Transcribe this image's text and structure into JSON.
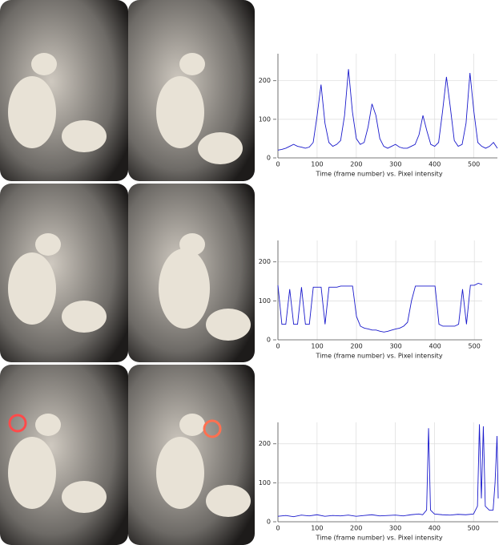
{
  "chart_data": [
    {
      "type": "line",
      "xlabel": "Time (frame number) vs. Pixel intensity",
      "color": "#1a1acc",
      "grid": true,
      "x": [
        0,
        10,
        20,
        30,
        40,
        50,
        60,
        70,
        80,
        90,
        100,
        110,
        120,
        130,
        140,
        150,
        160,
        170,
        180,
        190,
        200,
        210,
        220,
        230,
        240,
        250,
        260,
        270,
        280,
        290,
        300,
        310,
        320,
        330,
        340,
        350,
        360,
        370,
        380,
        390,
        400,
        410,
        420,
        430,
        440,
        450,
        460,
        470,
        480,
        490,
        500,
        510,
        520,
        530,
        540,
        550,
        560
      ],
      "values": [
        20,
        22,
        25,
        30,
        35,
        30,
        28,
        25,
        28,
        40,
        110,
        190,
        90,
        40,
        30,
        35,
        45,
        110,
        230,
        120,
        50,
        35,
        40,
        80,
        140,
        110,
        50,
        30,
        25,
        30,
        35,
        28,
        25,
        25,
        30,
        35,
        60,
        110,
        70,
        35,
        30,
        40,
        120,
        210,
        130,
        45,
        30,
        35,
        90,
        220,
        120,
        40,
        30,
        25,
        30,
        40,
        25
      ],
      "xlim": [
        0,
        560
      ],
      "ylim": [
        0,
        270
      ],
      "xticks": [
        0,
        100,
        200,
        300,
        400,
        500
      ],
      "yticks": [
        0,
        100,
        200
      ]
    },
    {
      "type": "line",
      "xlabel": "Time (frame number) vs. Pixel intensity",
      "color": "#1a1acc",
      "grid": true,
      "x": [
        0,
        10,
        20,
        30,
        40,
        50,
        60,
        70,
        80,
        90,
        100,
        110,
        120,
        130,
        140,
        150,
        160,
        170,
        180,
        190,
        200,
        210,
        220,
        230,
        240,
        250,
        260,
        270,
        280,
        290,
        300,
        310,
        320,
        330,
        340,
        350,
        360,
        370,
        380,
        390,
        400,
        410,
        420,
        430,
        440,
        450,
        460,
        470,
        480,
        490,
        500,
        510,
        520
      ],
      "values": [
        140,
        40,
        40,
        130,
        40,
        40,
        135,
        40,
        40,
        135,
        135,
        135,
        40,
        135,
        135,
        135,
        138,
        138,
        138,
        138,
        60,
        35,
        30,
        28,
        25,
        25,
        22,
        20,
        22,
        25,
        28,
        30,
        35,
        45,
        100,
        138,
        138,
        138,
        138,
        138,
        138,
        40,
        35,
        35,
        35,
        35,
        40,
        130,
        40,
        140,
        140,
        145,
        142
      ],
      "xlim": [
        0,
        520
      ],
      "ylim": [
        0,
        255
      ],
      "xticks": [
        0,
        100,
        200,
        300,
        400,
        500
      ],
      "yticks": [
        0,
        100,
        200
      ]
    },
    {
      "type": "line",
      "xlabel": "Time (frame number) vs. Pixel intensity",
      "color": "#1a1acc",
      "grid": true,
      "x": [
        0,
        20,
        40,
        60,
        80,
        100,
        120,
        140,
        160,
        180,
        200,
        220,
        240,
        260,
        280,
        300,
        320,
        340,
        360,
        370,
        380,
        385,
        390,
        400,
        420,
        440,
        460,
        480,
        500,
        510,
        515,
        520,
        525,
        530,
        540,
        550,
        555,
        560,
        563
      ],
      "values": [
        14,
        16,
        13,
        17,
        15,
        18,
        14,
        16,
        15,
        17,
        14,
        16,
        18,
        15,
        16,
        17,
        15,
        18,
        20,
        18,
        30,
        240,
        30,
        20,
        18,
        17,
        19,
        18,
        20,
        40,
        250,
        60,
        245,
        40,
        30,
        30,
        100,
        220,
        60
      ],
      "xlim": [
        0,
        563
      ],
      "ylim": [
        0,
        255
      ],
      "xticks": [
        0,
        100,
        200,
        300,
        400,
        500
      ],
      "yticks": [
        0,
        100,
        200
      ]
    }
  ]
}
